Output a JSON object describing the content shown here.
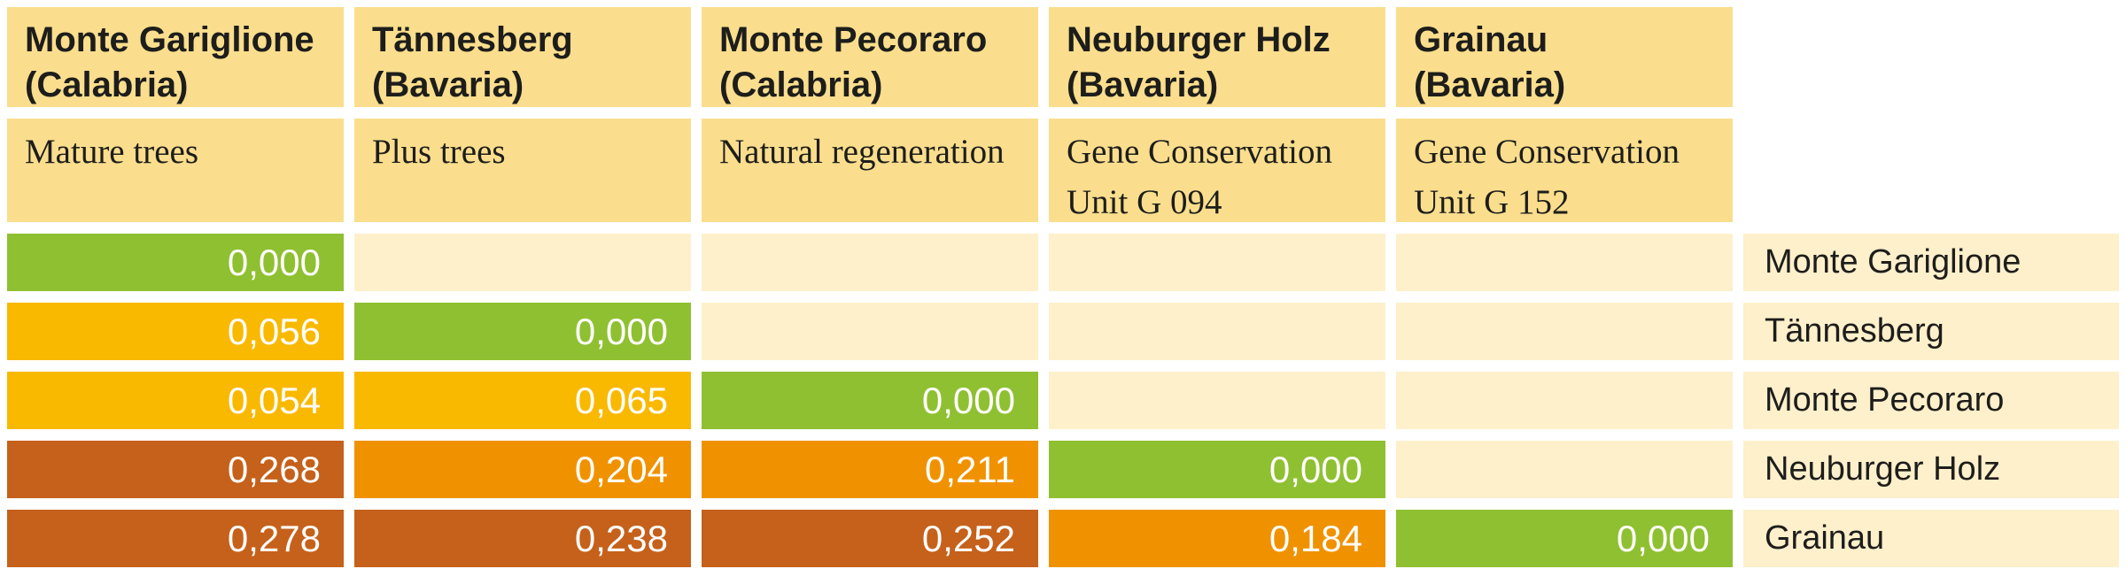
{
  "matrix": {
    "columns": [
      {
        "site": "Monte Gariglione",
        "region": "(Calabria)",
        "material": "Mature trees"
      },
      {
        "site": "Tännesberg",
        "region": "(Bavaria)",
        "material": "Plus trees"
      },
      {
        "site": "Monte Pecoraro",
        "region": "(Calabria)",
        "material": "Natural regeneration"
      },
      {
        "site": "Neuburger Holz",
        "region": "(Bavaria)",
        "material": "Gene Conservation Unit G 094"
      },
      {
        "site": "Grainau",
        "region": "(Bavaria)",
        "material": "Gene Conservation Unit G 152"
      }
    ],
    "rows": [
      {
        "label": "Monte Gariglione",
        "cells": [
          {
            "value": "0,000",
            "level": "zero"
          },
          null,
          null,
          null,
          null
        ]
      },
      {
        "label": "Tännesberg",
        "cells": [
          {
            "value": "0,056",
            "level": "low"
          },
          {
            "value": "0,000",
            "level": "zero"
          },
          null,
          null,
          null
        ]
      },
      {
        "label": "Monte Pecoraro",
        "cells": [
          {
            "value": "0,054",
            "level": "low"
          },
          {
            "value": "0,065",
            "level": "low"
          },
          {
            "value": "0,000",
            "level": "zero"
          },
          null,
          null
        ]
      },
      {
        "label": "Neuburger Holz",
        "cells": [
          {
            "value": "0,268",
            "level": "high"
          },
          {
            "value": "0,204",
            "level": "mid"
          },
          {
            "value": "0,211",
            "level": "mid"
          },
          {
            "value": "0,000",
            "level": "zero"
          },
          null
        ]
      },
      {
        "label": "Grainau",
        "cells": [
          {
            "value": "0,278",
            "level": "high"
          },
          {
            "value": "0,238",
            "level": "high"
          },
          {
            "value": "0,252",
            "level": "high"
          },
          {
            "value": "0,184",
            "level": "mid"
          },
          {
            "value": "0,000",
            "level": "zero"
          }
        ]
      }
    ]
  },
  "chart_data": {
    "type": "heatmap",
    "title": "",
    "rows": [
      "Monte Gariglione",
      "Tännesberg",
      "Monte Pecoraro",
      "Neuburger Holz",
      "Grainau"
    ],
    "columns": [
      "Monte Gariglione (Calabria) Mature trees",
      "Tännesberg (Bavaria) Plus trees",
      "Monte Pecoraro (Calabria) Natural regeneration",
      "Neuburger Holz (Bavaria) Gene Conservation Unit G 094",
      "Grainau (Bavaria) Gene Conservation Unit G 152"
    ],
    "values": [
      [
        0.0,
        null,
        null,
        null,
        null
      ],
      [
        0.056,
        0.0,
        null,
        null,
        null
      ],
      [
        0.054,
        0.065,
        0.0,
        null,
        null
      ],
      [
        0.268,
        0.204,
        0.211,
        0.0,
        null
      ],
      [
        0.278,
        0.238,
        0.252,
        0.184,
        0.0
      ]
    ],
    "legend_position": "none",
    "color_scale": [
      {
        "level": "zero",
        "range": "0.000",
        "color": "#8fc031"
      },
      {
        "level": "low",
        "range": "0.054–0.065",
        "color": "#f9b900"
      },
      {
        "level": "mid",
        "range": "0.184–0.211",
        "color": "#f09200"
      },
      {
        "level": "high",
        "range": "0.238–0.278",
        "color": "#c5611b"
      }
    ]
  },
  "colors": {
    "header_bg": "#fade8d",
    "empty_bg": "#fdf0cb",
    "zero": "#8fc031",
    "low": "#f9b900",
    "mid": "#f09200",
    "high": "#c5611b",
    "value_text": "#ffffff",
    "label_text": "#1d1d1b"
  }
}
